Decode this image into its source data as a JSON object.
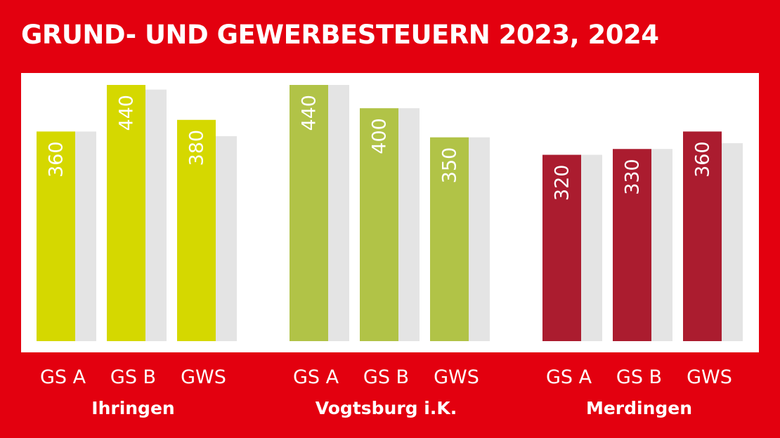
{
  "chart_data": {
    "type": "bar",
    "title": "GRUND- UND GEWERBESTEUERN 2023, 2024",
    "xlabel": "",
    "ylabel": "",
    "ylim": [
      0,
      440
    ],
    "grid": false,
    "groups": [
      {
        "name": "Ihringen",
        "color": "#d5d800",
        "categories": [
          "GS A",
          "GS B",
          "GWS"
        ],
        "values": [
          360,
          440,
          380
        ],
        "comparison_values": [
          360,
          432,
          352
        ]
      },
      {
        "name": "Vogtsburg i.K.",
        "color": "#b1c347",
        "categories": [
          "GS A",
          "GS B",
          "GWS"
        ],
        "values": [
          440,
          400,
          350
        ],
        "comparison_values": [
          440,
          400,
          350
        ]
      },
      {
        "name": "Merdingen",
        "color": "#ab1c2f",
        "categories": [
          "GS A",
          "GS B",
          "GWS"
        ],
        "values": [
          320,
          330,
          360
        ],
        "comparison_values": [
          320,
          330,
          340
        ]
      }
    ],
    "comparison_color": "#e4e4e4"
  }
}
